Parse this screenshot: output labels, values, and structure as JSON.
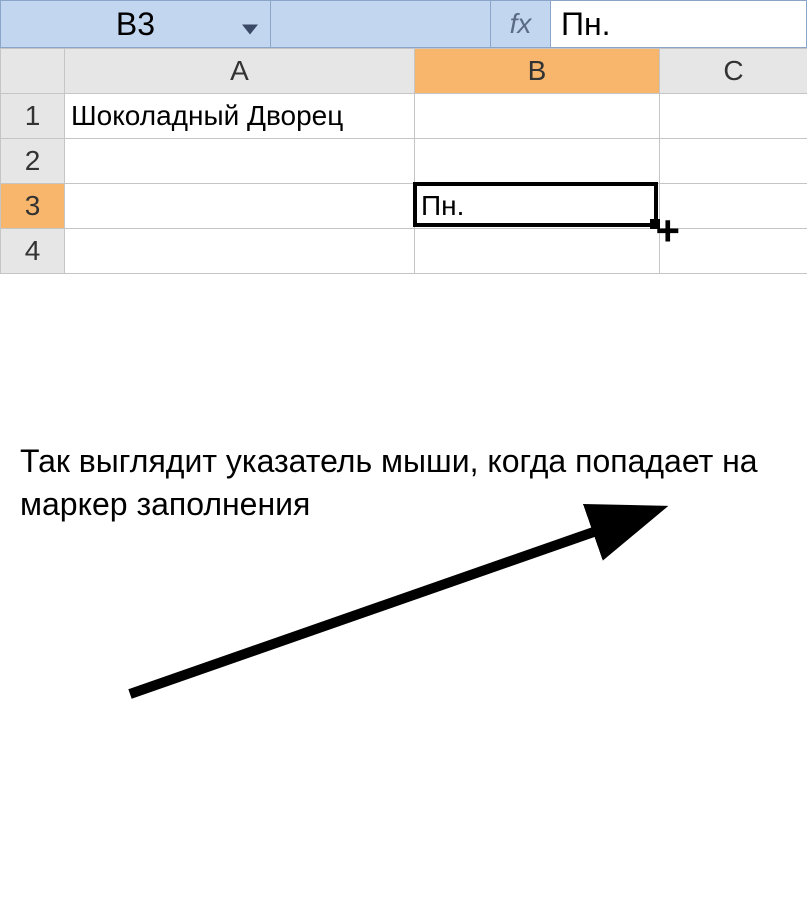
{
  "formula_bar": {
    "name_box": "B3",
    "fx_label": "fx",
    "formula_value": "Пн."
  },
  "columns": {
    "A": "A",
    "B": "B",
    "C": "C"
  },
  "rows": {
    "r1": "1",
    "r2": "2",
    "r3": "3",
    "r4": "4"
  },
  "cells": {
    "A1": "Шоколадный Дворец",
    "B3": "Пн."
  },
  "active_cell": {
    "ref": "B3",
    "col": "B",
    "row": "3"
  },
  "cursor_glyph": "+",
  "annotation": {
    "text": "Так выглядит указатель мыши, когда попадает на маркер заполнения"
  },
  "colors": {
    "formula_bar_bg": "#c3d6f0",
    "header_bg": "#e6e6e6",
    "active_header_bg": "#f8b66d",
    "grid_border": "#c5c5c5",
    "selection_border": "#000000"
  }
}
